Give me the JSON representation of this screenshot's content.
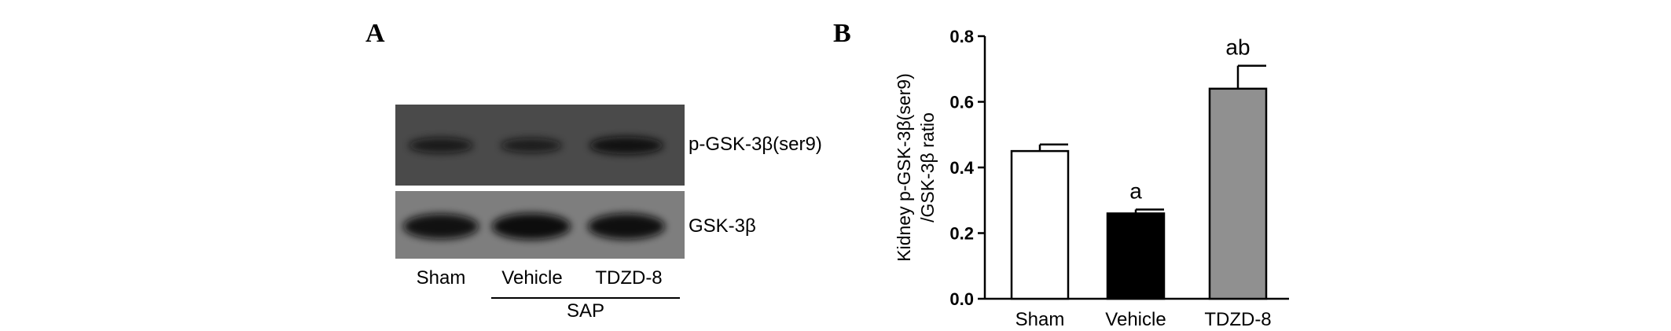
{
  "panel_a": {
    "letter": "A",
    "blots": [
      {
        "label": "p-GSK-3β(ser9)",
        "intensities": [
          0.55,
          0.45,
          0.85
        ]
      },
      {
        "label": "GSK-3β",
        "intensities": [
          0.9,
          1.0,
          0.95
        ]
      }
    ],
    "lanes": [
      "Sham",
      "Vehicle",
      "TDZD-8"
    ],
    "group_label": "SAP"
  },
  "panel_b": {
    "letter": "B"
  },
  "chart_data": {
    "type": "bar",
    "categories": [
      "Sham",
      "Vehicle",
      "TDZD-8"
    ],
    "values": [
      0.45,
      0.26,
      0.64
    ],
    "errors": [
      0.02,
      0.012,
      0.07
    ],
    "bar_colors": [
      "#ffffff",
      "#000000",
      "#909090"
    ],
    "annotations": [
      "",
      "a",
      "ab"
    ],
    "ylabel_lines": [
      "Kidney p-GSK-3β(ser9)",
      "/GSK-3β ratio"
    ],
    "xlabel": "",
    "ylim": [
      0.0,
      0.8
    ],
    "yticks": [
      "0.0",
      "0.2",
      "0.4",
      "0.6",
      "0.8"
    ],
    "grid": false
  }
}
